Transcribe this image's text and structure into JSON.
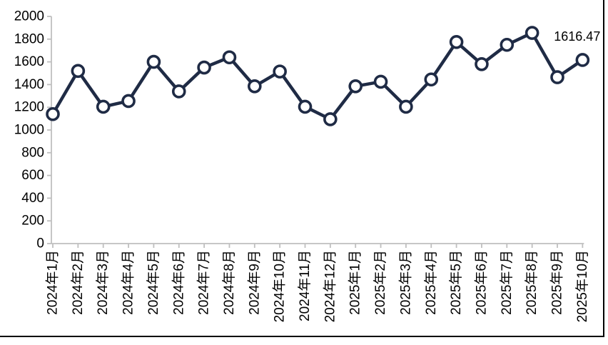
{
  "chart_data": {
    "type": "line",
    "title": "",
    "xlabel": "",
    "ylabel": "",
    "categories": [
      "2024年1月",
      "2024年2月",
      "2024年3月",
      "2024年4月",
      "2024年5月",
      "2024年6月",
      "2024年7月",
      "2024年8月",
      "2024年9月",
      "2024年10月",
      "2024年11月",
      "2024年12月",
      "2025年1月",
      "2025年2月",
      "2025年3月",
      "2025年4月",
      "2025年5月",
      "2025年6月",
      "2025年7月",
      "2025年8月",
      "2025年9月",
      "2025年10月"
    ],
    "values": [
      1140,
      1520,
      1205,
      1255,
      1600,
      1340,
      1550,
      1640,
      1385,
      1515,
      1205,
      1095,
      1385,
      1425,
      1205,
      1445,
      1775,
      1580,
      1750,
      1855,
      1465,
      1616.47
    ],
    "ylim": [
      0,
      2000
    ],
    "ytick_step": 200,
    "yticks": [
      0,
      200,
      400,
      600,
      800,
      1000,
      1200,
      1400,
      1600,
      1800,
      2000
    ],
    "last_point_label": "1616.47",
    "grid": "off",
    "legend": "none",
    "colors": {
      "line": "#1f2b45",
      "marker_fill": "#ffffff",
      "marker_stroke": "#1f2b45",
      "axis": "#bfbfbf",
      "text": "#000000",
      "frame_border": "#000000",
      "background": "#ffffff"
    }
  }
}
